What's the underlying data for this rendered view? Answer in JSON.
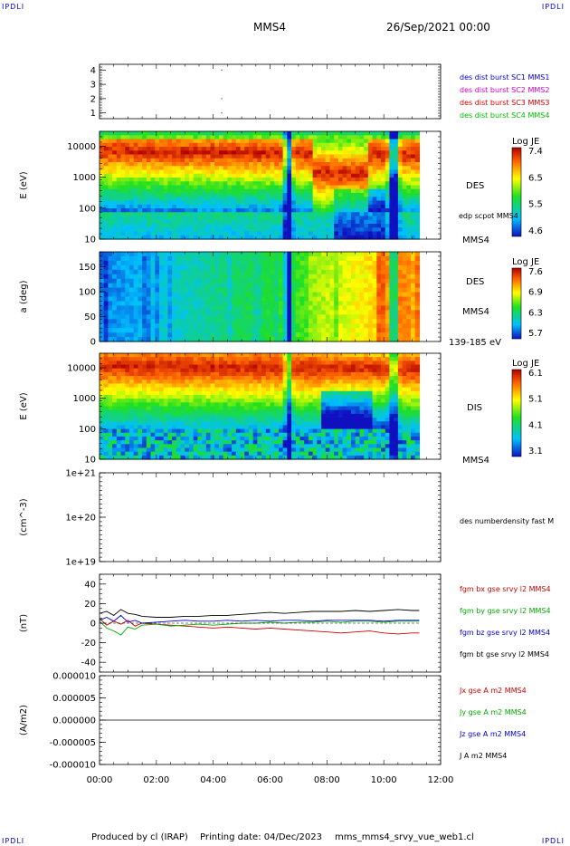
{
  "corners": {
    "tl": "IPDLI",
    "tr": "IPDLI",
    "bl": "IPDLI",
    "br": "IPDLI"
  },
  "header": {
    "spacecraft": "MMS4",
    "datetime": "26/Sep/2021 00:00"
  },
  "footer": {
    "produced": "Produced by cl (IRAP)",
    "printing": "Printing date: 04/Dec/2023",
    "file": "mms_mms4_srvy_vue_web1.cl"
  },
  "colors": {
    "mms1": "#0000cc",
    "mms2": "#cc00cc",
    "mms3": "#cc0000",
    "mms4": "#00bb00",
    "bx": "#cc0000",
    "by": "#00aa00",
    "bz": "#0000cc",
    "bt": "#000000"
  },
  "chart_data": [
    {
      "id": "burst",
      "type": "scatter",
      "yticks": [
        "1",
        "2",
        "3",
        "4"
      ],
      "ylim": [
        0.6,
        4.4
      ],
      "legend": [
        "des dist burst SC1 MMS1",
        "des dist burst SC2 MMS2",
        "des dist burst SC3 MMS3",
        "des dist burst SC4 MMS4"
      ],
      "series": [
        {
          "x": [
            4.3,
            4.3,
            4.3
          ],
          "y": [
            1.0,
            2.0,
            4.0
          ]
        }
      ]
    },
    {
      "id": "des-energy",
      "type": "heatmap",
      "ylabel": "E (eV)",
      "yscale": "log",
      "ylim": [
        10,
        30000
      ],
      "yticks": [
        "10",
        "100",
        "1000",
        "10000"
      ],
      "colorbar": {
        "title": "Log JE",
        "ticks": [
          "7.4",
          "6.5",
          "5.5",
          "4.6"
        ]
      },
      "labels": [
        "DES",
        "edp scpot MMS4"
      ],
      "bottom_label": "MMS4"
    },
    {
      "id": "des-pitch",
      "type": "heatmap",
      "ylabel": "a (deg)",
      "ylim": [
        0,
        180
      ],
      "yticks": [
        "0",
        "50",
        "100",
        "150"
      ],
      "colorbar": {
        "title": "Log JE",
        "ticks": [
          "7.6",
          "6.9",
          "6.3",
          "5.7"
        ]
      },
      "labels": [
        "DES",
        "MMS4"
      ],
      "bottom_label": "139-185 eV"
    },
    {
      "id": "dis-energy",
      "type": "heatmap",
      "ylabel": "E (eV)",
      "yscale": "log",
      "ylim": [
        10,
        30000
      ],
      "yticks": [
        "10",
        "100",
        "1000",
        "10000"
      ],
      "colorbar": {
        "title": "Log JE",
        "ticks": [
          "6.1",
          "5.1",
          "4.1",
          "3.1"
        ]
      },
      "labels": [
        "DIS"
      ],
      "bottom_label": "MMS4"
    },
    {
      "id": "density",
      "type": "line",
      "ylabel": "(cm^-3)",
      "yscale": "log",
      "yticks": [
        "1e+19",
        "1e+20",
        "1e+21"
      ],
      "legend": [
        "des numberdensity fast M"
      ],
      "series": []
    },
    {
      "id": "fgm",
      "type": "line",
      "ylabel": "(nT)",
      "ylim": [
        -50,
        50
      ],
      "yticks": [
        "-40",
        "-20",
        "0",
        "20",
        "40"
      ],
      "legend": [
        "fgm bx gse srvy l2 MMS4",
        "fgm by gse srvy l2 MMS4",
        "fgm bz gse srvy l2 MMS4",
        "fgm bt gse srvy l2 MMS4"
      ],
      "x": [
        0,
        0.25,
        0.5,
        0.75,
        1,
        1.25,
        1.5,
        2,
        2.5,
        3,
        3.5,
        4,
        4.5,
        5,
        5.5,
        6,
        6.5,
        7,
        7.5,
        8,
        8.5,
        9,
        9.5,
        10,
        10.5,
        11,
        11.25
      ],
      "series": [
        {
          "name": "fgm bx gse srvy l2 MMS4",
          "values": [
            5,
            -2,
            2,
            -1,
            3,
            -3,
            0,
            -1,
            -2,
            -3,
            -4,
            -5,
            -4,
            -5,
            -6,
            -5,
            -6,
            -7,
            -8,
            -9,
            -10,
            -9,
            -8,
            -10,
            -11,
            -10,
            -10
          ]
        },
        {
          "name": "fgm by gse srvy l2 MMS4",
          "values": [
            2,
            -5,
            -8,
            -12,
            -4,
            -6,
            -2,
            -1,
            -3,
            -2,
            -1,
            -2,
            -1,
            0,
            0,
            1,
            0,
            1,
            1,
            2,
            1,
            2,
            2,
            1,
            2,
            2,
            2
          ]
        },
        {
          "name": "fgm bz gse srvy l2 MMS4",
          "values": [
            3,
            6,
            2,
            8,
            1,
            3,
            0,
            1,
            2,
            3,
            2,
            2,
            3,
            2,
            3,
            2,
            3,
            3,
            2,
            3,
            3,
            3,
            3,
            2,
            3,
            3,
            3
          ]
        },
        {
          "name": "fgm bt gse srvy l2 MMS4",
          "values": [
            10,
            12,
            8,
            14,
            10,
            9,
            7,
            6,
            6,
            7,
            7,
            8,
            8,
            9,
            10,
            11,
            10,
            11,
            12,
            12,
            12,
            13,
            12,
            13,
            14,
            13,
            13
          ]
        }
      ]
    },
    {
      "id": "current",
      "type": "line",
      "ylabel": "(A/m2)",
      "ylim": [
        -1e-05,
        1e-05
      ],
      "yticks": [
        "-0.000010",
        "-0.000005",
        "0.000000",
        "0.000005",
        "0.000010"
      ],
      "legend": [
        "Jx gse A m2 MMS4",
        "Jy gse A m2 MMS4",
        "Jz gse A m2 MMS4",
        "J A m2 MMS4"
      ],
      "series": []
    }
  ],
  "time_axis": {
    "ticks": [
      "00:00",
      "02:00",
      "04:00",
      "06:00",
      "08:00",
      "10:00",
      "12:00"
    ],
    "range_hours": [
      0,
      12
    ],
    "data_end_hours": 11.25
  }
}
